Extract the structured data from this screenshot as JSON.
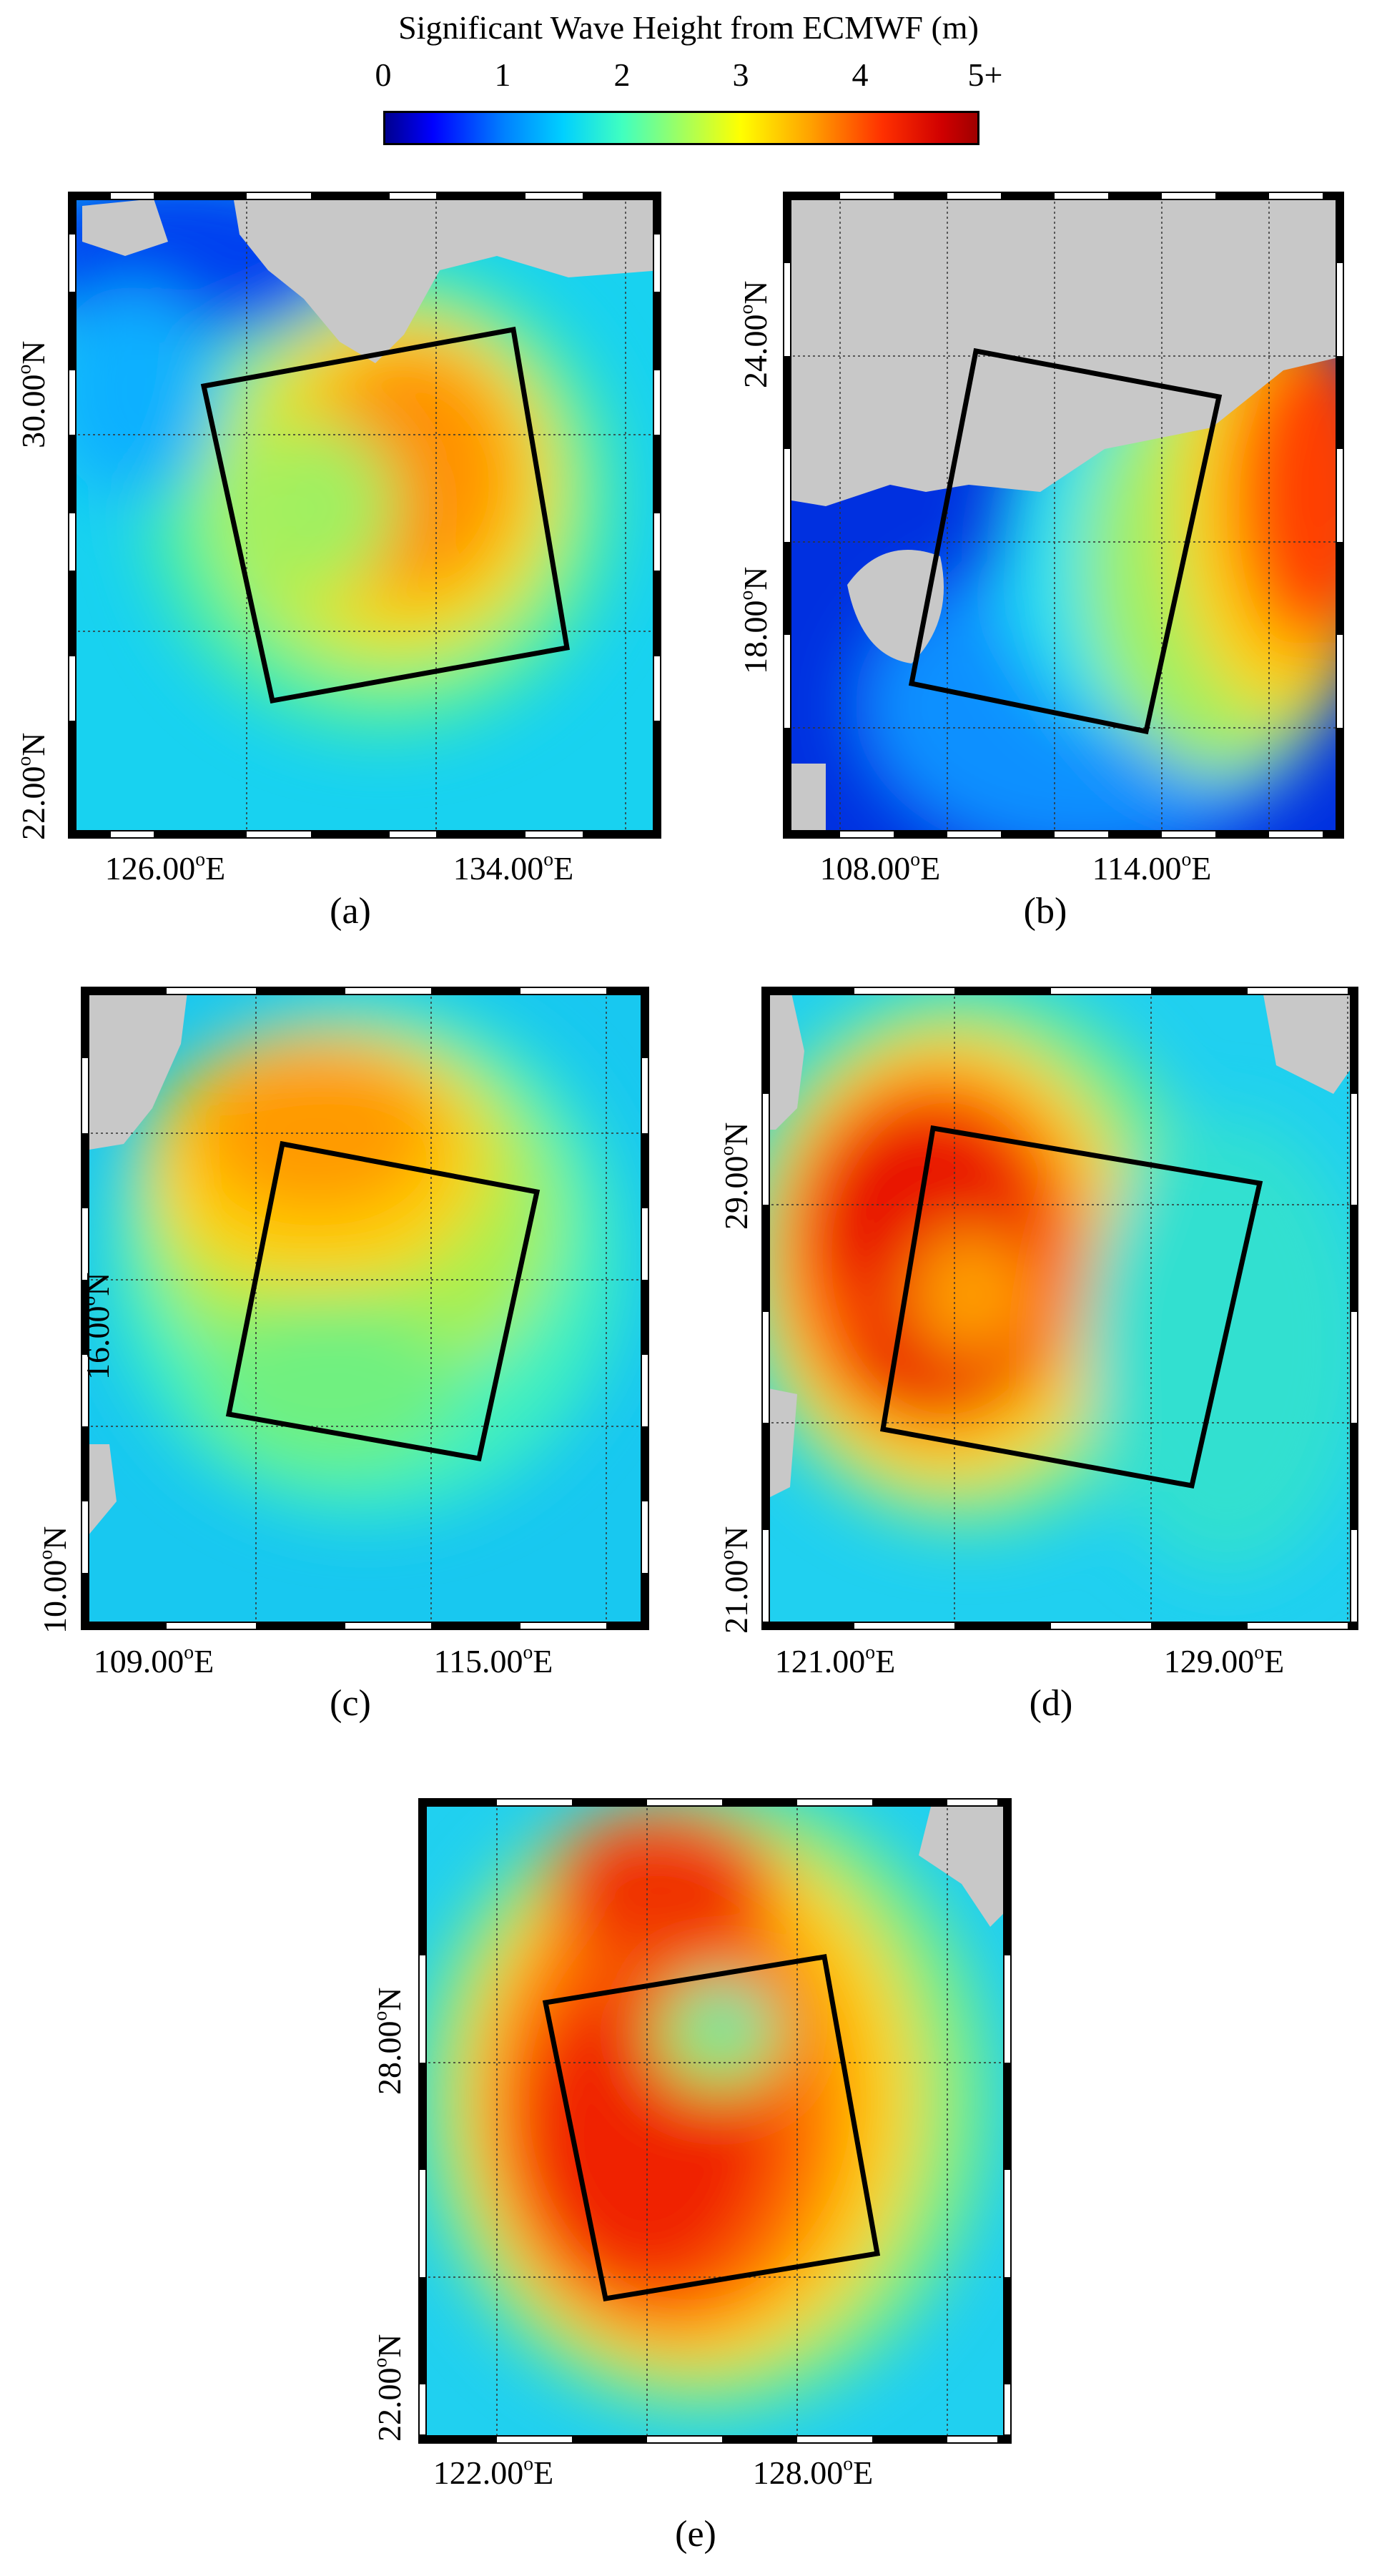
{
  "colorbar": {
    "title": "Significant Wave Height from ECMWF (m)",
    "ticks": [
      "0",
      "1",
      "2",
      "3",
      "4",
      "5+"
    ]
  },
  "panels": [
    {
      "id": "a",
      "label": "(a)",
      "lat_labels": [
        {
          "deg": "22.00",
          "hem": "N"
        },
        {
          "deg": "30.00",
          "hem": "N"
        }
      ],
      "lon_labels": [
        {
          "deg": "126.00",
          "hem": "E"
        },
        {
          "deg": "134.00",
          "hem": "E"
        }
      ]
    },
    {
      "id": "b",
      "label": "(b)",
      "lat_labels": [
        {
          "deg": "18.00",
          "hem": "N"
        },
        {
          "deg": "24.00",
          "hem": "N"
        }
      ],
      "lon_labels": [
        {
          "deg": "108.00",
          "hem": "E"
        },
        {
          "deg": "114.00",
          "hem": "E"
        }
      ]
    },
    {
      "id": "c",
      "label": "(c)",
      "lat_labels": [
        {
          "deg": "10.00",
          "hem": "N"
        },
        {
          "deg": "16.00",
          "hem": "N"
        }
      ],
      "lon_labels": [
        {
          "deg": "109.00",
          "hem": "E"
        },
        {
          "deg": "115.00",
          "hem": "E"
        }
      ]
    },
    {
      "id": "d",
      "label": "(d)",
      "lat_labels": [
        {
          "deg": "21.00",
          "hem": "N"
        },
        {
          "deg": "29.00",
          "hem": "N"
        }
      ],
      "lon_labels": [
        {
          "deg": "121.00",
          "hem": "E"
        },
        {
          "deg": "129.00",
          "hem": "E"
        }
      ]
    },
    {
      "id": "e",
      "label": "(e)",
      "lat_labels": [
        {
          "deg": "22.00",
          "hem": "N"
        },
        {
          "deg": "28.00",
          "hem": "N"
        }
      ],
      "lon_labels": [
        {
          "deg": "122.00",
          "hem": "E"
        },
        {
          "deg": "128.00",
          "hem": "E"
        }
      ]
    }
  ],
  "colors": {
    "land": "#c8c8c8",
    "box": "#000000"
  }
}
